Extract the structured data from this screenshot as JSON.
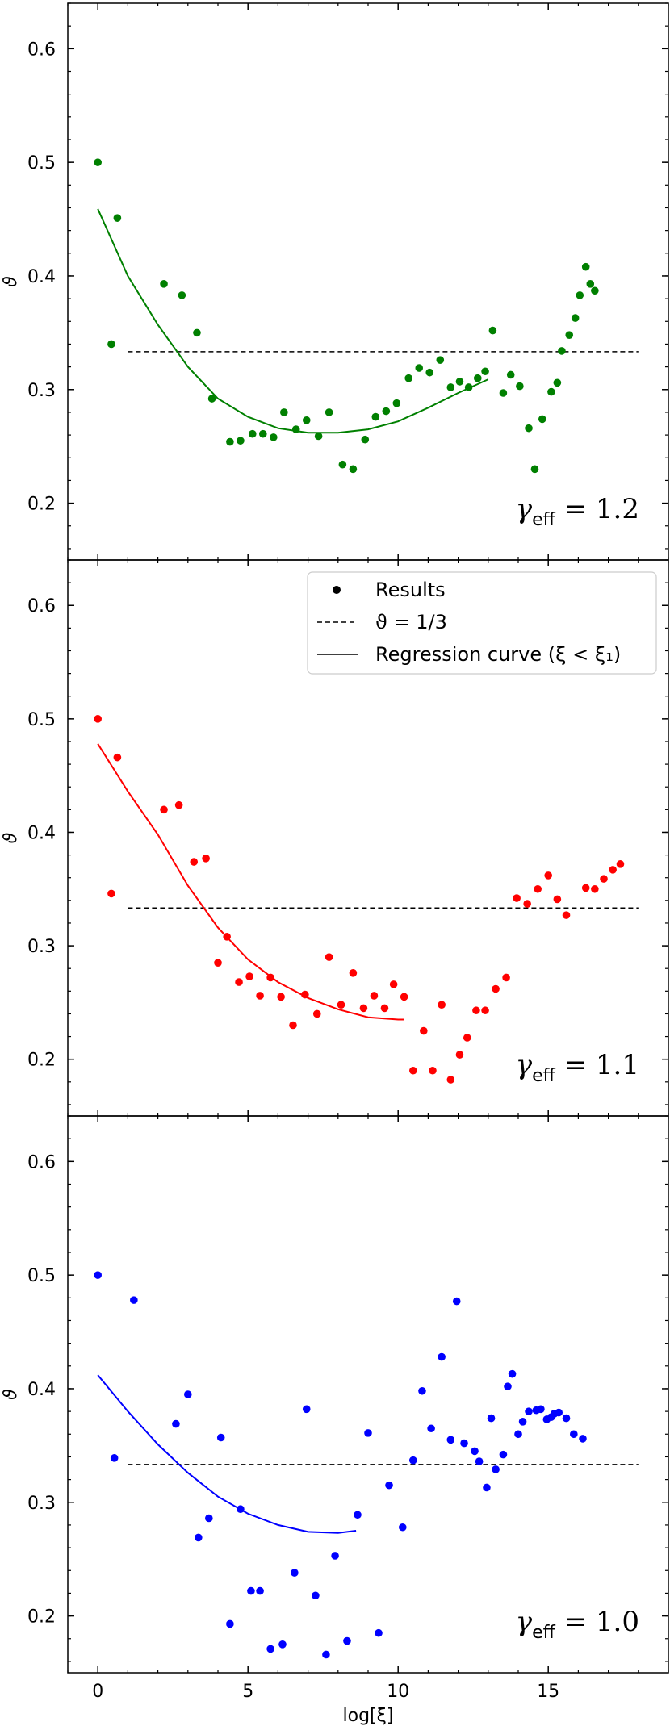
{
  "chart_data": [
    {
      "type": "scatter",
      "panel": "top",
      "color": "#008000",
      "annotation": "γ_eff = 1.2",
      "annotation_parts": {
        "symbol": "γ",
        "sub": "eff",
        "value": " = 1.2"
      },
      "xlabel": "",
      "ylabel": "ϑ",
      "xlim": [
        -1.0,
        19.0
      ],
      "ylim": [
        0.15,
        0.64
      ],
      "xticks": [
        0,
        5,
        10,
        15
      ],
      "yticks": [
        0.2,
        0.3,
        0.4,
        0.5,
        0.6
      ],
      "ytick_labels": [
        "0.2",
        "0.3",
        "0.4",
        "0.5",
        "0.6"
      ],
      "x_minor_step": 1,
      "y_minor_step": 0.02,
      "reference_y": 0.3333,
      "reference_x_range": [
        1.0,
        18.0
      ],
      "results": [
        [
          0.0,
          0.5
        ],
        [
          0.45,
          0.34
        ],
        [
          0.65,
          0.451
        ],
        [
          2.2,
          0.393
        ],
        [
          2.8,
          0.383
        ],
        [
          3.3,
          0.35
        ],
        [
          3.8,
          0.292
        ],
        [
          4.4,
          0.254
        ],
        [
          4.75,
          0.255
        ],
        [
          5.15,
          0.261
        ],
        [
          5.5,
          0.261
        ],
        [
          5.85,
          0.258
        ],
        [
          6.2,
          0.28
        ],
        [
          6.6,
          0.265
        ],
        [
          6.95,
          0.273
        ],
        [
          7.35,
          0.259
        ],
        [
          7.7,
          0.28
        ],
        [
          8.15,
          0.234
        ],
        [
          8.5,
          0.23
        ],
        [
          8.9,
          0.256
        ],
        [
          9.25,
          0.276
        ],
        [
          9.6,
          0.281
        ],
        [
          9.95,
          0.288
        ],
        [
          10.35,
          0.31
        ],
        [
          10.7,
          0.319
        ],
        [
          11.05,
          0.315
        ],
        [
          11.4,
          0.326
        ],
        [
          11.75,
          0.302
        ],
        [
          12.05,
          0.307
        ],
        [
          12.35,
          0.302
        ],
        [
          12.65,
          0.31
        ],
        [
          12.9,
          0.316
        ],
        [
          13.15,
          0.352
        ],
        [
          13.5,
          0.297
        ],
        [
          13.75,
          0.313
        ],
        [
          14.05,
          0.303
        ],
        [
          14.35,
          0.266
        ],
        [
          14.55,
          0.23
        ],
        [
          14.8,
          0.274
        ],
        [
          15.1,
          0.298
        ],
        [
          15.3,
          0.306
        ],
        [
          15.45,
          0.334
        ],
        [
          15.7,
          0.348
        ],
        [
          15.9,
          0.363
        ],
        [
          16.05,
          0.383
        ],
        [
          16.25,
          0.408
        ],
        [
          16.4,
          0.393
        ],
        [
          16.55,
          0.387
        ]
      ],
      "regression_curve": [
        [
          0.0,
          0.459
        ],
        [
          1.0,
          0.4
        ],
        [
          2.0,
          0.357
        ],
        [
          3.0,
          0.32
        ],
        [
          4.0,
          0.292
        ],
        [
          5.0,
          0.276
        ],
        [
          6.0,
          0.266
        ],
        [
          7.0,
          0.262
        ],
        [
          8.0,
          0.262
        ],
        [
          9.0,
          0.265
        ],
        [
          10.0,
          0.272
        ],
        [
          11.0,
          0.284
        ],
        [
          12.0,
          0.297
        ],
        [
          13.0,
          0.309
        ]
      ]
    },
    {
      "type": "scatter",
      "panel": "middle",
      "color": "#ff0000",
      "annotation": "γ_eff = 1.1",
      "annotation_parts": {
        "symbol": "γ",
        "sub": "eff",
        "value": " = 1.1"
      },
      "xlabel": "",
      "ylabel": "ϑ",
      "xlim": [
        -1.0,
        19.0
      ],
      "ylim": [
        0.15,
        0.64
      ],
      "xticks": [
        0,
        5,
        10,
        15
      ],
      "yticks": [
        0.2,
        0.3,
        0.4,
        0.5,
        0.6
      ],
      "ytick_labels": [
        "0.2",
        "0.3",
        "0.4",
        "0.5",
        "0.6"
      ],
      "x_minor_step": 1,
      "y_minor_step": 0.02,
      "reference_y": 0.3333,
      "reference_x_range": [
        1.0,
        18.0
      ],
      "legend": {
        "placement": "top-right",
        "entries": [
          {
            "label": "Results",
            "kind": "marker"
          },
          {
            "label": "ϑ = 1/3",
            "kind": "dashed"
          },
          {
            "label": "Regression curve (ξ < ξ₁)",
            "kind": "solid"
          }
        ]
      },
      "results": [
        [
          0.0,
          0.5
        ],
        [
          0.45,
          0.346
        ],
        [
          0.65,
          0.466
        ],
        [
          2.2,
          0.42
        ],
        [
          2.7,
          0.424
        ],
        [
          3.2,
          0.374
        ],
        [
          3.6,
          0.377
        ],
        [
          4.0,
          0.285
        ],
        [
          4.3,
          0.308
        ],
        [
          4.7,
          0.268
        ],
        [
          5.05,
          0.273
        ],
        [
          5.4,
          0.256
        ],
        [
          5.75,
          0.272
        ],
        [
          6.1,
          0.255
        ],
        [
          6.5,
          0.23
        ],
        [
          6.9,
          0.257
        ],
        [
          7.3,
          0.24
        ],
        [
          7.7,
          0.29
        ],
        [
          8.1,
          0.248
        ],
        [
          8.5,
          0.276
        ],
        [
          8.85,
          0.245
        ],
        [
          9.2,
          0.256
        ],
        [
          9.55,
          0.245
        ],
        [
          9.85,
          0.266
        ],
        [
          10.2,
          0.255
        ],
        [
          10.5,
          0.19
        ],
        [
          10.85,
          0.225
        ],
        [
          11.15,
          0.19
        ],
        [
          11.45,
          0.248
        ],
        [
          11.75,
          0.182
        ],
        [
          12.05,
          0.204
        ],
        [
          12.3,
          0.219
        ],
        [
          12.6,
          0.243
        ],
        [
          12.9,
          0.243
        ],
        [
          13.25,
          0.262
        ],
        [
          13.6,
          0.272
        ],
        [
          13.95,
          0.342
        ],
        [
          14.3,
          0.337
        ],
        [
          14.65,
          0.35
        ],
        [
          15.0,
          0.362
        ],
        [
          15.3,
          0.341
        ],
        [
          15.6,
          0.327
        ],
        [
          16.25,
          0.351
        ],
        [
          16.55,
          0.35
        ],
        [
          16.85,
          0.359
        ],
        [
          17.15,
          0.367
        ],
        [
          17.4,
          0.372
        ]
      ],
      "regression_curve": [
        [
          0.0,
          0.478
        ],
        [
          1.0,
          0.436
        ],
        [
          2.0,
          0.398
        ],
        [
          3.0,
          0.353
        ],
        [
          4.0,
          0.316
        ],
        [
          5.0,
          0.288
        ],
        [
          6.0,
          0.268
        ],
        [
          7.0,
          0.254
        ],
        [
          8.0,
          0.244
        ],
        [
          9.0,
          0.237
        ],
        [
          10.0,
          0.235
        ],
        [
          10.2,
          0.235
        ]
      ]
    },
    {
      "type": "scatter",
      "panel": "bottom",
      "color": "#0000ff",
      "annotation": "γ_eff = 1.0",
      "annotation_parts": {
        "symbol": "γ",
        "sub": "eff",
        "value": " = 1.0"
      },
      "xlabel": "log[ξ]",
      "ylabel": "ϑ",
      "xlim": [
        -1.0,
        19.0
      ],
      "ylim": [
        0.15,
        0.64
      ],
      "xticks": [
        0,
        5,
        10,
        15
      ],
      "yticks": [
        0.2,
        0.3,
        0.4,
        0.5,
        0.6
      ],
      "ytick_labels": [
        "0.2",
        "0.3",
        "0.4",
        "0.5",
        "0.6"
      ],
      "x_minor_step": 1,
      "y_minor_step": 0.02,
      "reference_y": 0.3333,
      "reference_x_range": [
        1.0,
        18.0
      ],
      "results": [
        [
          0.0,
          0.5
        ],
        [
          0.55,
          0.339
        ],
        [
          1.2,
          0.478
        ],
        [
          2.6,
          0.369
        ],
        [
          3.0,
          0.395
        ],
        [
          3.35,
          0.269
        ],
        [
          3.7,
          0.286
        ],
        [
          4.1,
          0.357
        ],
        [
          4.4,
          0.193
        ],
        [
          4.75,
          0.294
        ],
        [
          5.1,
          0.222
        ],
        [
          5.4,
          0.222
        ],
        [
          5.75,
          0.171
        ],
        [
          6.15,
          0.175
        ],
        [
          6.55,
          0.238
        ],
        [
          6.95,
          0.382
        ],
        [
          7.25,
          0.218
        ],
        [
          7.6,
          0.166
        ],
        [
          7.9,
          0.253
        ],
        [
          8.3,
          0.178
        ],
        [
          8.65,
          0.289
        ],
        [
          9.0,
          0.361
        ],
        [
          9.35,
          0.185
        ],
        [
          9.7,
          0.315
        ],
        [
          10.15,
          0.278
        ],
        [
          10.5,
          0.337
        ],
        [
          10.8,
          0.398
        ],
        [
          11.1,
          0.365
        ],
        [
          11.45,
          0.428
        ],
        [
          11.75,
          0.355
        ],
        [
          11.95,
          0.477
        ],
        [
          12.2,
          0.352
        ],
        [
          12.55,
          0.345
        ],
        [
          12.7,
          0.336
        ],
        [
          12.95,
          0.313
        ],
        [
          13.1,
          0.374
        ],
        [
          13.25,
          0.329
        ],
        [
          13.5,
          0.342
        ],
        [
          13.65,
          0.402
        ],
        [
          13.8,
          0.413
        ],
        [
          14.0,
          0.36
        ],
        [
          14.15,
          0.371
        ],
        [
          14.35,
          0.38
        ],
        [
          14.6,
          0.381
        ],
        [
          14.75,
          0.382
        ],
        [
          14.95,
          0.373
        ],
        [
          15.1,
          0.375
        ],
        [
          15.2,
          0.378
        ],
        [
          15.35,
          0.379
        ],
        [
          15.6,
          0.374
        ],
        [
          15.85,
          0.36
        ],
        [
          16.15,
          0.356
        ]
      ],
      "regression_curve": [
        [
          0.0,
          0.412
        ],
        [
          1.0,
          0.38
        ],
        [
          2.0,
          0.351
        ],
        [
          3.0,
          0.326
        ],
        [
          4.0,
          0.305
        ],
        [
          5.0,
          0.29
        ],
        [
          6.0,
          0.28
        ],
        [
          7.0,
          0.274
        ],
        [
          8.0,
          0.273
        ],
        [
          8.6,
          0.275
        ]
      ]
    }
  ]
}
